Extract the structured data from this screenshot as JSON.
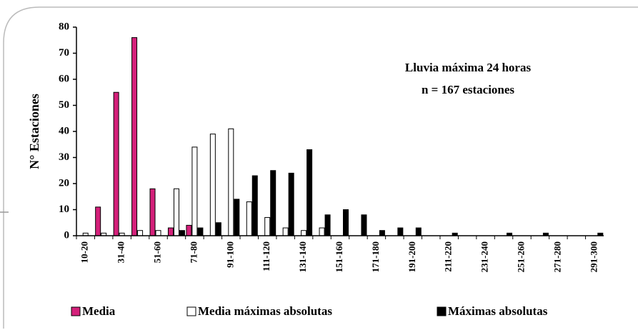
{
  "chart_data": {
    "type": "bar",
    "y_label": "N° Estaciones",
    "annotations": [
      "Lluvia máxima 24 horas",
      "n = 167 estaciones"
    ],
    "categories": [
      "10-20",
      null,
      "31-40",
      null,
      "51-60",
      null,
      "71-80",
      null,
      "91-100",
      null,
      "111-120",
      null,
      "131-140",
      null,
      "151-160",
      null,
      "171-180",
      null,
      "191-200",
      null,
      "211-220",
      null,
      "231-240",
      null,
      "251-260",
      null,
      "271-280",
      null,
      "291-300"
    ],
    "series": [
      {
        "name": "Media",
        "color": "#d4207a",
        "values": [
          0,
          11,
          55,
          76,
          18,
          3,
          4,
          0,
          0,
          0,
          0,
          0,
          0,
          0,
          0,
          0,
          0,
          0,
          0,
          0,
          0,
          0,
          0,
          0,
          0,
          0,
          0,
          0,
          0
        ]
      },
      {
        "name": "Media máximas absolutas",
        "color": "#ffffff",
        "values": [
          1,
          1,
          1,
          2,
          2,
          18,
          34,
          39,
          41,
          13,
          7,
          3,
          2,
          3,
          0,
          0,
          0,
          0,
          0,
          0,
          0,
          0,
          0,
          0,
          0,
          0,
          0,
          0,
          0
        ]
      },
      {
        "name": "Máximas absolutas",
        "color": "#000000",
        "values": [
          0,
          0,
          0,
          0,
          0,
          2,
          3,
          5,
          14,
          23,
          25,
          24,
          33,
          8,
          10,
          8,
          2,
          3,
          3,
          0,
          1,
          0,
          0,
          1,
          0,
          1,
          0,
          0,
          1
        ]
      }
    ],
    "ylim": [
      0,
      80
    ],
    "yticks": [
      0,
      10,
      20,
      30,
      40,
      50,
      60,
      70,
      80
    ],
    "grid": false
  }
}
